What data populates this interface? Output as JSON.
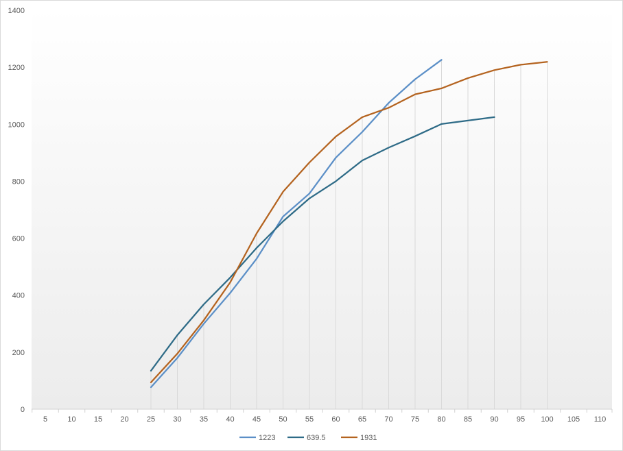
{
  "chart_data": {
    "type": "line",
    "title": "",
    "xlabel": "",
    "ylabel": "",
    "x_categories": [
      "5",
      "10",
      "15",
      "20",
      "25",
      "30",
      "35",
      "40",
      "45",
      "50",
      "55",
      "60",
      "65",
      "70",
      "75",
      "80",
      "85",
      "90",
      "95",
      "100",
      "105",
      "110"
    ],
    "ylim": [
      0,
      1400
    ],
    "y_ticks": [
      "0",
      "200",
      "400",
      "600",
      "800",
      "1000",
      "1200",
      "1400"
    ],
    "grid": "vertical",
    "legend_position": "bottom",
    "series": [
      {
        "name": "1223",
        "color": "#5b8fc7",
        "points": [
          [
            25,
            77
          ],
          [
            30,
            180
          ],
          [
            35,
            300
          ],
          [
            40,
            408
          ],
          [
            45,
            528
          ],
          [
            50,
            676
          ],
          [
            55,
            757
          ],
          [
            60,
            883
          ],
          [
            65,
            973
          ],
          [
            70,
            1075
          ],
          [
            75,
            1158
          ],
          [
            80,
            1226
          ]
        ]
      },
      {
        "name": "639.5",
        "color": "#2e6b87",
        "points": [
          [
            25,
            135
          ],
          [
            30,
            260
          ],
          [
            35,
            368
          ],
          [
            40,
            462
          ],
          [
            45,
            566
          ],
          [
            50,
            659
          ],
          [
            55,
            740
          ],
          [
            60,
            800
          ],
          [
            65,
            873
          ],
          [
            70,
            918
          ],
          [
            75,
            958
          ],
          [
            80,
            1001
          ],
          [
            85,
            1013
          ],
          [
            90,
            1025
          ]
        ]
      },
      {
        "name": "1931",
        "color": "#b4631f",
        "points": [
          [
            25,
            94
          ],
          [
            30,
            195
          ],
          [
            35,
            312
          ],
          [
            40,
            445
          ],
          [
            45,
            617
          ],
          [
            50,
            763
          ],
          [
            55,
            866
          ],
          [
            60,
            957
          ],
          [
            65,
            1025
          ],
          [
            70,
            1058
          ],
          [
            75,
            1105
          ],
          [
            80,
            1126
          ],
          [
            85,
            1162
          ],
          [
            90,
            1190
          ],
          [
            95,
            1209
          ],
          [
            100,
            1219
          ]
        ]
      }
    ]
  }
}
